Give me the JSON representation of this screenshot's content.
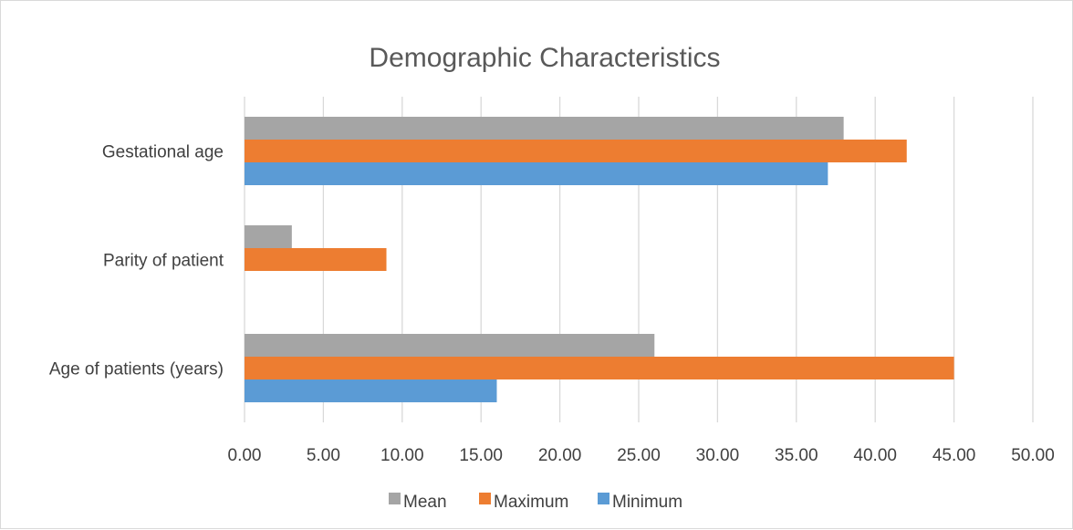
{
  "chart_data": {
    "type": "bar",
    "orientation": "horizontal",
    "title": "Demographic Characteristics",
    "categories": [
      "Age of patients (years)",
      "Parity of patient",
      "Gestational age"
    ],
    "series": [
      {
        "name": "Minimum",
        "color": "#5b9bd5",
        "values": [
          16,
          0,
          37
        ]
      },
      {
        "name": "Maximum",
        "color": "#ed7d31",
        "values": [
          45,
          9,
          42
        ]
      },
      {
        "name": "Mean",
        "color": "#a5a5a5",
        "values": [
          26,
          3,
          38
        ]
      }
    ],
    "xlim": [
      0,
      50
    ],
    "xticks": [
      "0.00",
      "5.00",
      "10.00",
      "15.00",
      "20.00",
      "25.00",
      "30.00",
      "35.00",
      "40.00",
      "45.00",
      "50.00"
    ],
    "grid": true,
    "legend": {
      "position": "bottom",
      "order": [
        "Mean",
        "Maximum",
        "Minimum"
      ]
    }
  }
}
